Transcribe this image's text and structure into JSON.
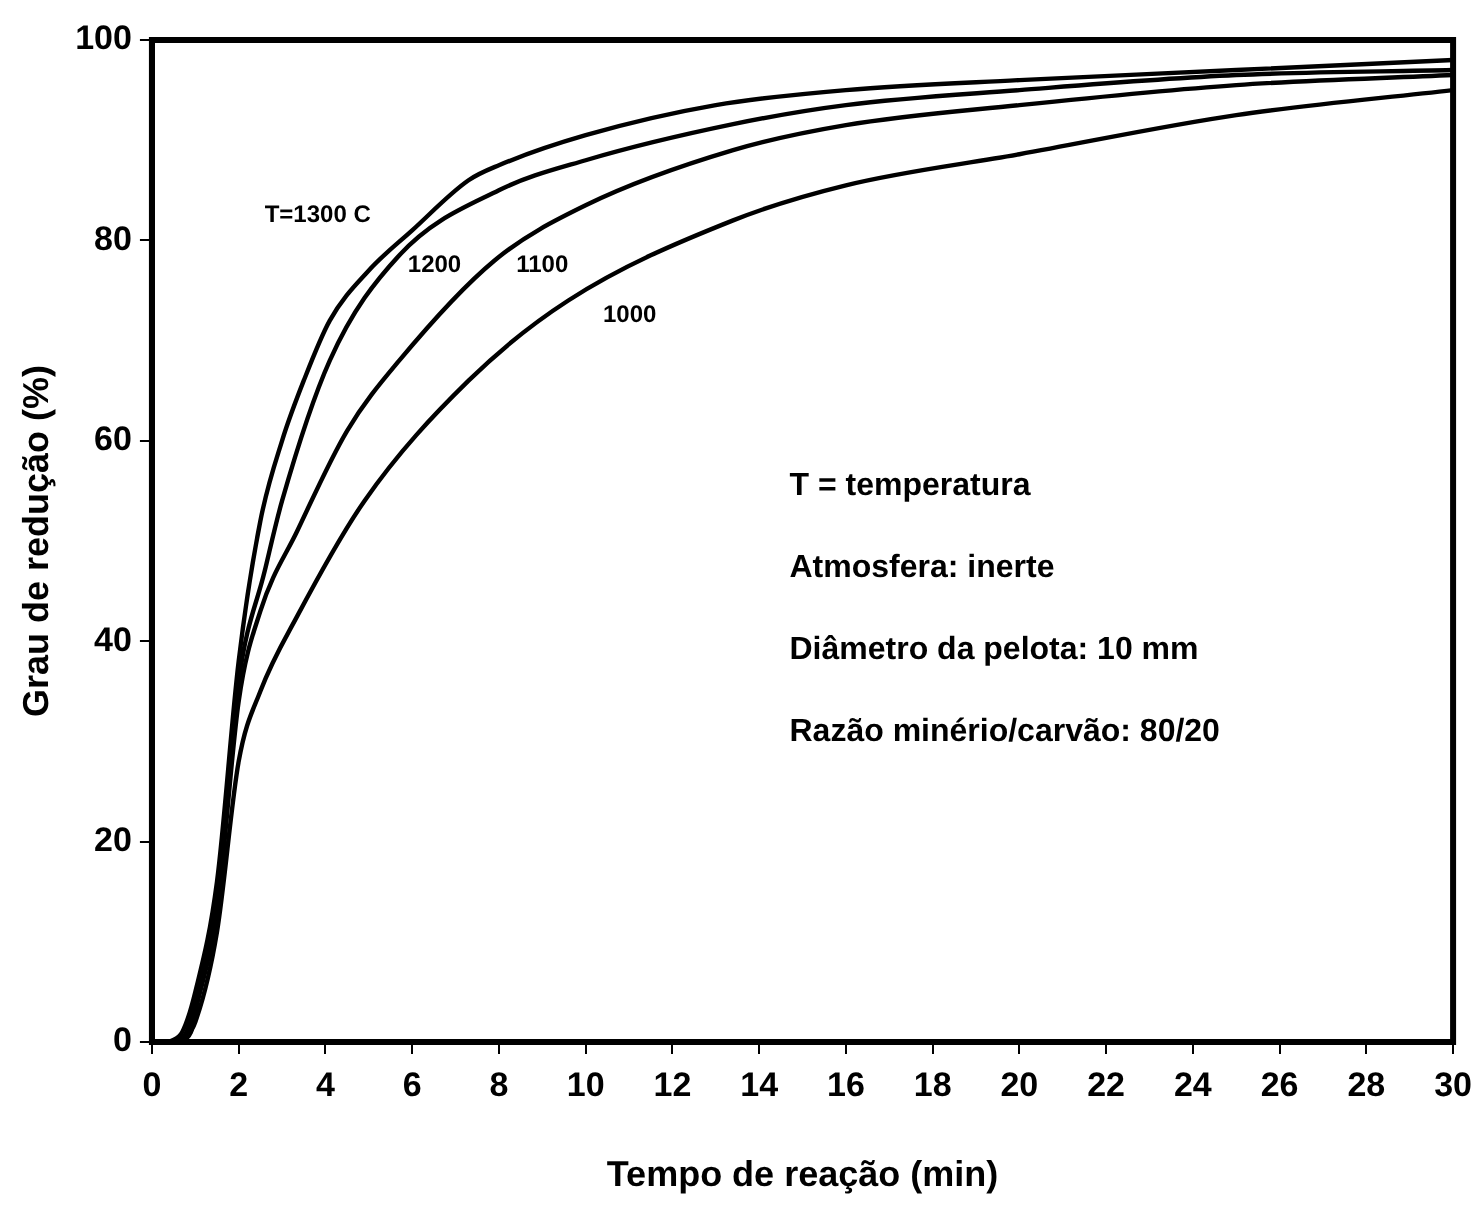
{
  "chart_data": {
    "type": "line",
    "xlabel": "Tempo de reação (min)",
    "ylabel": "Grau de redução (%)",
    "xlim": [
      0,
      30
    ],
    "xticks": [
      0,
      2,
      4,
      6,
      8,
      10,
      12,
      14,
      16,
      18,
      20,
      22,
      24,
      26,
      28,
      30
    ],
    "ylim": [
      0,
      100
    ],
    "yticks": [
      0,
      20,
      40,
      60,
      80,
      100
    ],
    "grid": false,
    "legend": false,
    "marker": "none",
    "line_style": "solid",
    "series": [
      {
        "name": "T=1300 C",
        "color": "#000000",
        "x": [
          0.4,
          0.7,
          1,
          1.5,
          2,
          2.5,
          3,
          3.5,
          4.1,
          5,
          6,
          7.3,
          8,
          10,
          13,
          16,
          20,
          25,
          30
        ],
        "values": [
          0,
          1,
          5,
          16,
          38,
          52,
          60,
          66,
          72,
          77,
          81,
          86,
          87.5,
          90.5,
          93.5,
          95,
          96,
          97,
          98
        ]
      },
      {
        "name": "1200",
        "color": "#000000",
        "x": [
          0.5,
          0.8,
          1,
          1.5,
          2,
          2.6,
          3,
          4.1,
          5.7,
          8,
          10,
          13.4,
          16,
          20,
          25,
          30
        ],
        "values": [
          0,
          1,
          4,
          14,
          36,
          47,
          54,
          68,
          78.5,
          85,
          88,
          91.6,
          93.5,
          95,
          96.5,
          97
        ]
      },
      {
        "name": "1100",
        "color": "#000000",
        "x": [
          0.6,
          0.9,
          1,
          1.5,
          2,
          2.5,
          3.35,
          4.5,
          5.7,
          7.9,
          10,
          13.4,
          16,
          20,
          25,
          30
        ],
        "values": [
          0,
          1,
          3,
          13,
          34,
          43,
          51,
          61,
          68,
          78,
          83.5,
          89,
          91.5,
          93.5,
          95.5,
          96.5
        ]
      },
      {
        "name": "1000",
        "color": "#000000",
        "x": [
          0.7,
          1,
          1.5,
          2,
          2.5,
          3.35,
          4.9,
          7.3,
          9.6,
          13.4,
          16,
          20,
          25,
          30
        ],
        "values": [
          0,
          2,
          11,
          28,
          35,
          42.5,
          54,
          66,
          74,
          82,
          85.5,
          88.6,
          92.5,
          95
        ]
      }
    ],
    "annotations": [
      "T = temperatura",
      "Atmosfera: inerte",
      "Diâmetro da pelota: 10 mm",
      "Razão minério/carvão: 80/20"
    ]
  }
}
